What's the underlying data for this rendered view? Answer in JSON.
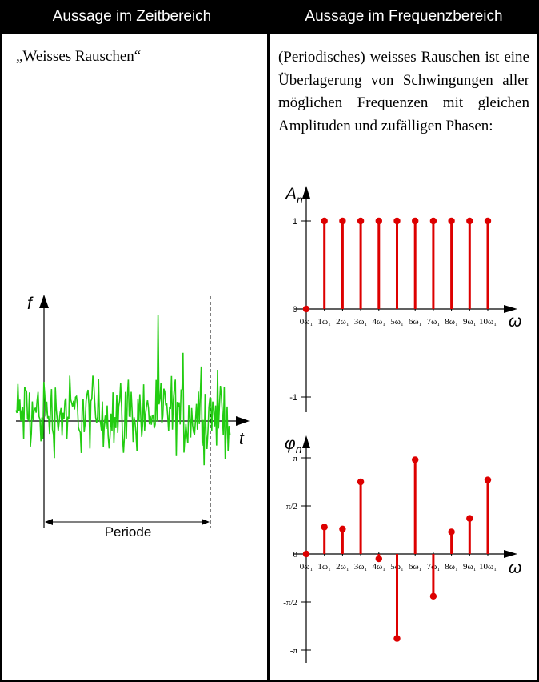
{
  "header": {
    "left": "Aussage im Zeitbereich",
    "right": "Aussage im Frequenzbereich"
  },
  "left": {
    "title": "„Weisses Rauschen“",
    "y_axis_label": "f",
    "x_axis_label": "t",
    "period_label": "Periode",
    "signal_color": "#22cc11"
  },
  "right": {
    "text": "(Periodisches) weisses Rauschen ist eine Überlagerung von Schwingungen aller möglichen Frequenzen mit gleichen Amplituden und zufälligen Phasen:",
    "stem_color": "#dd0000"
  },
  "chart_data": [
    {
      "type": "stem",
      "ylabel": "A",
      "ylabel_sub": "n",
      "xlabel": "ω",
      "x": [
        0,
        1,
        2,
        3,
        4,
        5,
        6,
        7,
        8,
        9,
        10
      ],
      "x_tick_labels": [
        "0ω₁",
        "1ω₁",
        "2ω₁",
        "3ω₁",
        "4ω₁",
        "5ω₁",
        "6ω₁",
        "7ω₁",
        "8ω₁",
        "9ω₁",
        "10ω₁"
      ],
      "values": [
        0,
        1,
        1,
        1,
        1,
        1,
        1,
        1,
        1,
        1,
        1
      ],
      "y_tick_values": [
        1,
        0,
        -1
      ],
      "y_tick_labels": [
        "1",
        "0",
        "-1"
      ],
      "ylim": [
        -1,
        1
      ]
    },
    {
      "type": "stem",
      "ylabel": "φ",
      "ylabel_sub": "n",
      "xlabel": "ω",
      "x": [
        0,
        1,
        2,
        3,
        4,
        5,
        6,
        7,
        8,
        9,
        10
      ],
      "x_tick_labels": [
        "0ω₁",
        "1ω₁",
        "2ω₁",
        "3ω₁",
        "4ω₁",
        "5ω₁",
        "6ω₁",
        "7ω₁",
        "8ω₁",
        "9ω₁",
        "10ω₁"
      ],
      "values_over_pi": [
        0,
        0.28,
        0.26,
        0.75,
        -0.05,
        -0.88,
        0.98,
        -0.44,
        0.23,
        0.37,
        0.77
      ],
      "y_tick_values_over_pi": [
        1,
        0.5,
        0,
        -0.5,
        -1
      ],
      "y_tick_labels": [
        "π",
        "π/2",
        "0",
        "-π/2",
        "-π"
      ],
      "ylim_over_pi": [
        -1,
        1
      ]
    }
  ]
}
